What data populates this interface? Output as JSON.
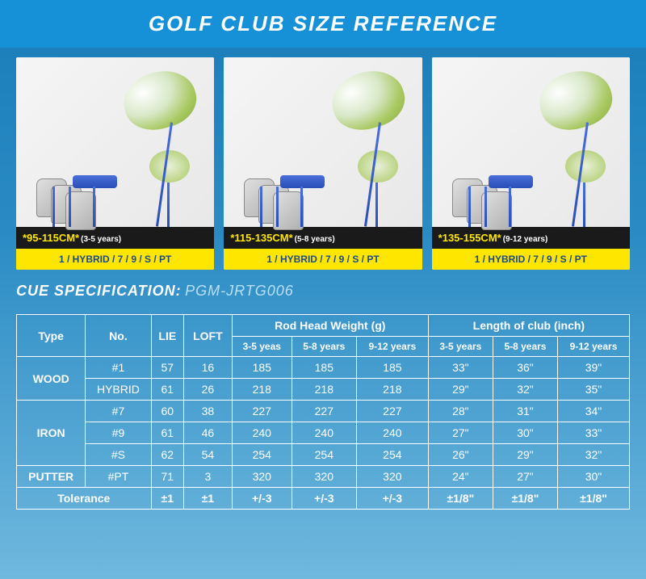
{
  "title": "GOLF CLUB SIZE REFERENCE",
  "products": [
    {
      "size": "*95-115CM*",
      "years": "(3-5 years)",
      "clubs": "1 / HYBRID / 7 / 9 / S / PT"
    },
    {
      "size": "*115-135CM*",
      "years": "(5-8 years)",
      "clubs": "1 / HYBRID / 7 / 9 / S / PT"
    },
    {
      "size": "*135-155CM*",
      "years": "(9-12 years)",
      "clubs": "1 / HYBRID / 7 / 9 / S / PT"
    }
  ],
  "spec_label": "CUE SPECIFICATION:",
  "spec_code": "PGM-JRTG006",
  "table": {
    "headers": {
      "type": "Type",
      "no": "No.",
      "lie": "LIE",
      "loft": "LOFT",
      "weight_group": "Rod Head Weight (g)",
      "length_group": "Length of club (inch)",
      "age_cols": [
        "3-5 yeas",
        "5-8 years",
        "9-12 years"
      ],
      "age_cols2": [
        "3-5 years",
        "5-8 years",
        "9-12 years"
      ]
    },
    "rows": [
      {
        "type": "WOOD",
        "type_rowspan": 2,
        "no": "#1",
        "lie": "57",
        "loft": "16",
        "w": [
          "185",
          "185",
          "185"
        ],
        "l": [
          "33\"",
          "36\"",
          "39\""
        ]
      },
      {
        "no": "HYBRID",
        "lie": "61",
        "loft": "26",
        "w": [
          "218",
          "218",
          "218"
        ],
        "l": [
          "29\"",
          "32\"",
          "35\""
        ]
      },
      {
        "type": "IRON",
        "type_rowspan": 3,
        "no": "#7",
        "lie": "60",
        "loft": "38",
        "w": [
          "227",
          "227",
          "227"
        ],
        "l": [
          "28\"",
          "31\"",
          "34\""
        ]
      },
      {
        "no": "#9",
        "lie": "61",
        "loft": "46",
        "w": [
          "240",
          "240",
          "240"
        ],
        "l": [
          "27\"",
          "30\"",
          "33\""
        ]
      },
      {
        "no": "#S",
        "lie": "62",
        "loft": "54",
        "w": [
          "254",
          "254",
          "254"
        ],
        "l": [
          "26\"",
          "29\"",
          "32\""
        ]
      },
      {
        "type": "PUTTER",
        "type_rowspan": 1,
        "no": "#PT",
        "lie": "71",
        "loft": "3",
        "w": [
          "320",
          "320",
          "320"
        ],
        "l": [
          "24\"",
          "27\"",
          "30\""
        ]
      }
    ],
    "tolerance": {
      "label": "Tolerance",
      "lie": "±1",
      "loft": "±1",
      "w": [
        "+/-3",
        "+/-3",
        "+/-3"
      ],
      "l": [
        "±1/8\"",
        "±1/8\"",
        "±1/8\""
      ]
    }
  },
  "colors": {
    "header_bg": "#1691d8",
    "page_bg_top": "#1a7db8",
    "yellow": "#ffe600",
    "dark": "#1a1a1a",
    "text_blue": "#1a4a8a"
  }
}
